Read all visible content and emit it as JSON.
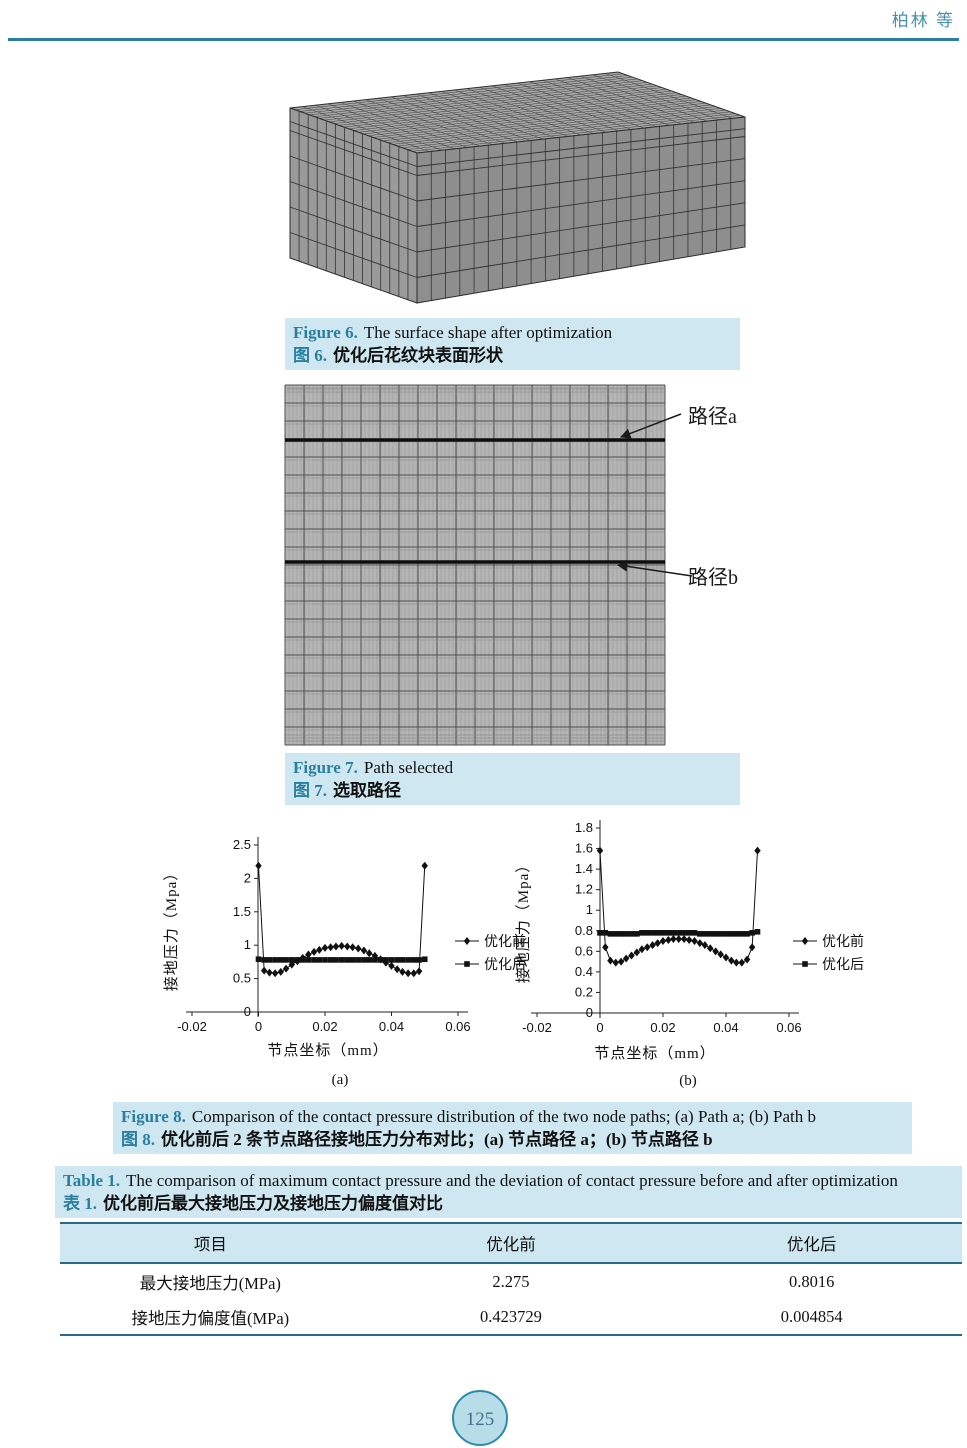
{
  "page": {
    "author": "柏林 等",
    "page_number": "125"
  },
  "colors": {
    "accent_teal": "#2a7f9e",
    "caption_bg": "#cfe7f0",
    "table_border": "#2b6a85",
    "chart_line": "#111111",
    "mesh_gray": "#a7a7a7",
    "page_circle_fill": "#b7dde9"
  },
  "figure6": {
    "caption_en_label": "Figure 6.",
    "caption_en": "The surface shape after optimization",
    "caption_cn_label": "图 6.",
    "caption_cn": "优化后花纹块表面形状"
  },
  "figure7": {
    "caption_en_label": "Figure 7.",
    "caption_en": "Path selected",
    "caption_cn_label": "图 7.",
    "caption_cn": "选取路径",
    "path_a_label": "路径a",
    "path_b_label": "路径b"
  },
  "figure8": {
    "caption_en_label": "Figure 8.",
    "caption_en": "Comparison of the contact pressure distribution of the two node paths; (a) Path a; (b) Path b",
    "caption_cn_label": "图 8.",
    "caption_cn": "优化前后 2 条节点路径接地压力分布对比；(a) 节点路径 a；(b) 节点路径 b"
  },
  "table1": {
    "caption_en_label": "Table 1.",
    "caption_en": "The comparison of maximum contact pressure and the deviation of contact pressure before and after optimization",
    "caption_cn_label": "表 1.",
    "caption_cn": "优化前后最大接地压力及接地压力偏度值对比",
    "headers": [
      "项目",
      "优化前",
      "优化后"
    ],
    "rows": [
      [
        "最大接地压力(MPa)",
        "2.275",
        "0.8016"
      ],
      [
        "接地压力偏度值(MPa)",
        "0.423729",
        "0.004854"
      ]
    ]
  },
  "chart_data": [
    {
      "type": "line",
      "panel": "(a)",
      "xlabel": "节点坐标（mm）",
      "ylabel": "接地压力（Mpa）",
      "xlim": [
        -0.02,
        0.06
      ],
      "xticks": [
        -0.02,
        0,
        0.02,
        0.04,
        0.06
      ],
      "ylim": [
        0,
        2.5
      ],
      "yticks": [
        0,
        0.5,
        1,
        1.5,
        2,
        2.5
      ],
      "grid": false,
      "legend_position": "right",
      "series": [
        {
          "name": "优化前",
          "marker": "diamond",
          "x": [
            0,
            0.0017,
            0.0033,
            0.005,
            0.0067,
            0.0083,
            0.01,
            0.0117,
            0.0133,
            0.015,
            0.0167,
            0.0183,
            0.02,
            0.0217,
            0.0233,
            0.025,
            0.0267,
            0.0283,
            0.03,
            0.0317,
            0.0333,
            0.035,
            0.0367,
            0.0383,
            0.04,
            0.0417,
            0.0433,
            0.045,
            0.0467,
            0.0483,
            0.05
          ],
          "y": [
            2.19,
            0.62,
            0.59,
            0.58,
            0.6,
            0.65,
            0.71,
            0.76,
            0.81,
            0.86,
            0.9,
            0.93,
            0.96,
            0.97,
            0.98,
            0.99,
            0.98,
            0.97,
            0.95,
            0.92,
            0.88,
            0.84,
            0.79,
            0.74,
            0.69,
            0.64,
            0.6,
            0.58,
            0.58,
            0.61,
            2.19
          ]
        },
        {
          "name": "优化后",
          "marker": "square",
          "x": [
            0,
            0.0017,
            0.0033,
            0.005,
            0.0067,
            0.0083,
            0.01,
            0.0117,
            0.0133,
            0.015,
            0.0167,
            0.0183,
            0.02,
            0.0217,
            0.0233,
            0.025,
            0.0267,
            0.0283,
            0.03,
            0.0317,
            0.0333,
            0.035,
            0.0367,
            0.0383,
            0.04,
            0.0417,
            0.0433,
            0.045,
            0.0467,
            0.0483,
            0.05
          ],
          "y": [
            0.79,
            0.78,
            0.78,
            0.78,
            0.78,
            0.78,
            0.78,
            0.78,
            0.78,
            0.78,
            0.78,
            0.78,
            0.78,
            0.78,
            0.78,
            0.78,
            0.78,
            0.78,
            0.78,
            0.78,
            0.78,
            0.78,
            0.78,
            0.78,
            0.78,
            0.78,
            0.78,
            0.78,
            0.78,
            0.78,
            0.79
          ]
        }
      ]
    },
    {
      "type": "line",
      "panel": "(b)",
      "xlabel": "节点坐标（mm）",
      "ylabel": "接地压力（Mpa）",
      "xlim": [
        -0.02,
        0.06
      ],
      "xticks": [
        -0.02,
        0,
        0.02,
        0.04,
        0.06
      ],
      "ylim": [
        0,
        1.8
      ],
      "yticks": [
        0,
        0.2,
        0.4,
        0.6,
        0.8,
        1,
        1.2,
        1.4,
        1.6,
        1.8
      ],
      "grid": false,
      "legend_position": "right",
      "series": [
        {
          "name": "优化前",
          "marker": "diamond",
          "x": [
            0,
            0.0017,
            0.0033,
            0.005,
            0.0067,
            0.0083,
            0.01,
            0.0117,
            0.0133,
            0.015,
            0.0167,
            0.0183,
            0.02,
            0.0217,
            0.0233,
            0.025,
            0.0267,
            0.0283,
            0.03,
            0.0317,
            0.0333,
            0.035,
            0.0367,
            0.0383,
            0.04,
            0.0417,
            0.0433,
            0.045,
            0.0467,
            0.0483,
            0.05
          ],
          "y": [
            1.58,
            0.64,
            0.51,
            0.49,
            0.5,
            0.53,
            0.56,
            0.59,
            0.62,
            0.64,
            0.66,
            0.68,
            0.7,
            0.71,
            0.72,
            0.72,
            0.72,
            0.71,
            0.7,
            0.68,
            0.66,
            0.63,
            0.6,
            0.57,
            0.54,
            0.51,
            0.49,
            0.49,
            0.52,
            0.64,
            1.58
          ]
        },
        {
          "name": "优化后",
          "marker": "square",
          "x": [
            0,
            0.0017,
            0.0033,
            0.005,
            0.0067,
            0.0083,
            0.01,
            0.0117,
            0.0133,
            0.015,
            0.0167,
            0.0183,
            0.02,
            0.0217,
            0.0233,
            0.025,
            0.0267,
            0.0283,
            0.03,
            0.0317,
            0.0333,
            0.035,
            0.0367,
            0.0383,
            0.04,
            0.0417,
            0.0433,
            0.045,
            0.0467,
            0.0483,
            0.05
          ],
          "y": [
            0.78,
            0.78,
            0.77,
            0.77,
            0.77,
            0.77,
            0.77,
            0.77,
            0.78,
            0.78,
            0.78,
            0.78,
            0.78,
            0.78,
            0.78,
            0.78,
            0.78,
            0.78,
            0.78,
            0.77,
            0.77,
            0.77,
            0.77,
            0.77,
            0.77,
            0.77,
            0.77,
            0.77,
            0.77,
            0.78,
            0.79
          ]
        }
      ]
    }
  ]
}
